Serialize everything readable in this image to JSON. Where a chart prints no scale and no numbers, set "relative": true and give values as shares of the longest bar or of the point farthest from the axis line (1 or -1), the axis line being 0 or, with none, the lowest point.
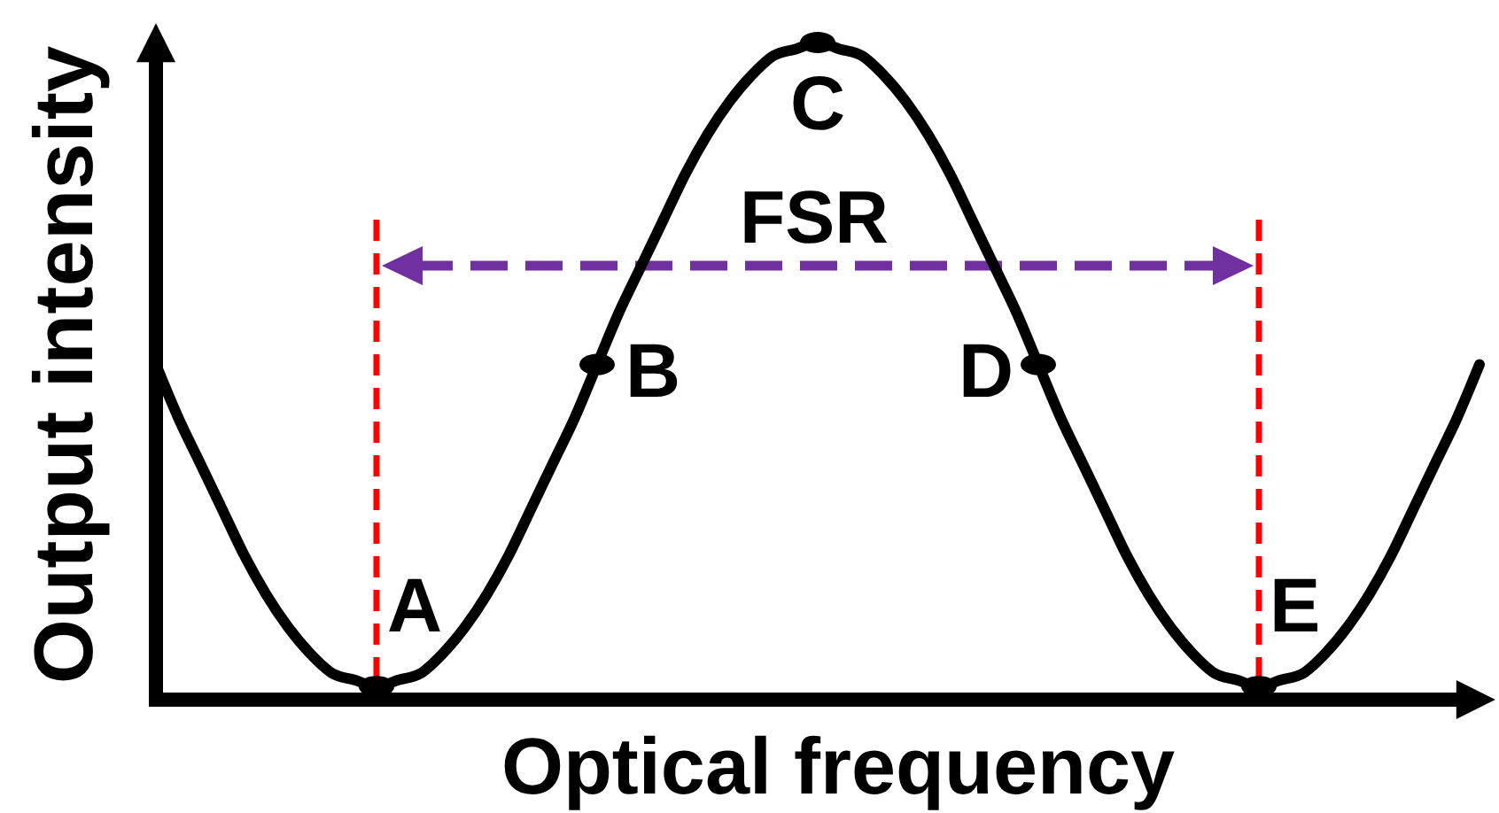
{
  "chart_data": {
    "type": "line",
    "relative": true,
    "xlabel": "Optical frequency",
    "ylabel": "Output intensity",
    "categories": [
      null,
      null,
      null,
      null,
      null,
      null,
      null,
      null,
      null,
      null,
      null,
      null,
      null,
      null,
      null,
      null,
      null,
      null,
      null,
      null,
      null,
      null,
      null,
      null,
      null,
      null,
      null,
      null,
      null,
      null,
      null,
      null,
      null,
      null,
      null,
      null,
      null,
      null,
      null,
      null,
      null,
      null,
      null,
      null,
      null,
      null,
      null,
      null,
      null,
      null,
      null,
      null,
      null,
      null,
      null,
      null,
      null,
      null,
      null,
      null,
      null
    ],
    "series": [
      {
        "color": "#000000",
        "values": [
          0.51,
          0.43,
          0.36,
          0.29,
          0.22,
          0.16,
          0.11,
          0.07,
          0.04,
          0.03,
          0.02,
          0.03,
          0.04,
          0.07,
          0.11,
          0.16,
          0.22,
          0.29,
          0.36,
          0.43,
          0.51,
          0.59,
          0.66,
          0.73,
          0.8,
          0.86,
          0.91,
          0.95,
          0.98,
          0.99,
          1,
          0.99,
          0.98,
          0.95,
          0.91,
          0.86,
          0.8,
          0.73,
          0.66,
          0.59,
          0.51,
          0.43,
          0.36,
          0.29,
          0.22,
          0.16,
          0.11,
          0.07,
          0.04,
          0.03,
          0.02,
          0.03,
          0.04,
          0.07,
          0.11,
          0.16,
          0.22,
          0.29,
          0.36,
          0.43,
          0.51
        ]
      },
      {
        "name": "A",
        "color": "#000000",
        "marker": "circle",
        "values": [
          null,
          null,
          null,
          null,
          null,
          null,
          null,
          null,
          null,
          null,
          0.02,
          null,
          null,
          null,
          null,
          null,
          null,
          null,
          null,
          null,
          null,
          null,
          null,
          null,
          null,
          null,
          null,
          null,
          null,
          null,
          null,
          null,
          null,
          null,
          null,
          null,
          null,
          null,
          null,
          null,
          null,
          null,
          null,
          null,
          null,
          null,
          null,
          null,
          null,
          null,
          null,
          null,
          null,
          null,
          null,
          null,
          null,
          null,
          null,
          null,
          null
        ]
      },
      {
        "name": "B",
        "color": "#000000",
        "marker": "circle",
        "values": [
          null,
          null,
          null,
          null,
          null,
          null,
          null,
          null,
          null,
          null,
          null,
          null,
          null,
          null,
          null,
          null,
          null,
          null,
          null,
          null,
          0.51,
          null,
          null,
          null,
          null,
          null,
          null,
          null,
          null,
          null,
          null,
          null,
          null,
          null,
          null,
          null,
          null,
          null,
          null,
          null,
          null,
          null,
          null,
          null,
          null,
          null,
          null,
          null,
          null,
          null,
          null,
          null,
          null,
          null,
          null,
          null,
          null,
          null,
          null,
          null,
          null
        ]
      },
      {
        "name": "C",
        "color": "#000000",
        "marker": "circle",
        "values": [
          null,
          null,
          null,
          null,
          null,
          null,
          null,
          null,
          null,
          null,
          null,
          null,
          null,
          null,
          null,
          null,
          null,
          null,
          null,
          null,
          null,
          null,
          null,
          null,
          null,
          null,
          null,
          null,
          null,
          null,
          1,
          null,
          null,
          null,
          null,
          null,
          null,
          null,
          null,
          null,
          null,
          null,
          null,
          null,
          null,
          null,
          null,
          null,
          null,
          null,
          null,
          null,
          null,
          null,
          null,
          null,
          null,
          null,
          null,
          null,
          null
        ]
      },
      {
        "name": "D",
        "color": "#000000",
        "marker": "circle",
        "values": [
          null,
          null,
          null,
          null,
          null,
          null,
          null,
          null,
          null,
          null,
          null,
          null,
          null,
          null,
          null,
          null,
          null,
          null,
          null,
          null,
          null,
          null,
          null,
          null,
          null,
          null,
          null,
          null,
          null,
          null,
          null,
          null,
          null,
          null,
          null,
          null,
          null,
          null,
          null,
          null,
          0.51,
          null,
          null,
          null,
          null,
          null,
          null,
          null,
          null,
          null,
          null,
          null,
          null,
          null,
          null,
          null,
          null,
          null,
          null,
          null,
          null
        ]
      },
      {
        "name": "E",
        "color": "#000000",
        "marker": "circle",
        "values": [
          null,
          null,
          null,
          null,
          null,
          null,
          null,
          null,
          null,
          null,
          null,
          null,
          null,
          null,
          null,
          null,
          null,
          null,
          null,
          null,
          null,
          null,
          null,
          null,
          null,
          null,
          null,
          null,
          null,
          null,
          null,
          null,
          null,
          null,
          null,
          null,
          null,
          null,
          null,
          null,
          null,
          null,
          null,
          null,
          null,
          null,
          null,
          null,
          null,
          null,
          0.02,
          null,
          null,
          null,
          null,
          null,
          null,
          null,
          null,
          null,
          null
        ]
      }
    ],
    "annotations": [
      "FSR"
    ]
  }
}
